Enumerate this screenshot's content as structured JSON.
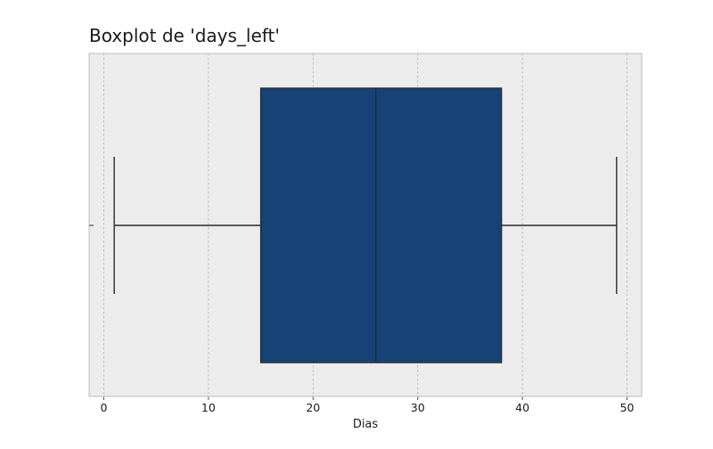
{
  "chart_data": {
    "type": "box",
    "title": "Boxplot de 'days_left'",
    "xlabel": "Dias",
    "ylabel": "",
    "xlim": [
      -1.4,
      51.4
    ],
    "x_ticks": [
      0,
      10,
      20,
      30,
      40,
      50
    ],
    "x_tick_labels": [
      "0",
      "10",
      "20",
      "30",
      "40",
      "50"
    ],
    "grid": true,
    "orientation": "horizontal",
    "box": {
      "min": 1,
      "q1": 15,
      "median": 26,
      "q3": 38,
      "max": 49
    },
    "colors": {
      "box_fill": "#154277",
      "line": "#2b2b2b",
      "plot_background": "#ececec",
      "grid": "#b0b0b0",
      "frame": "#bcbcbc"
    }
  }
}
